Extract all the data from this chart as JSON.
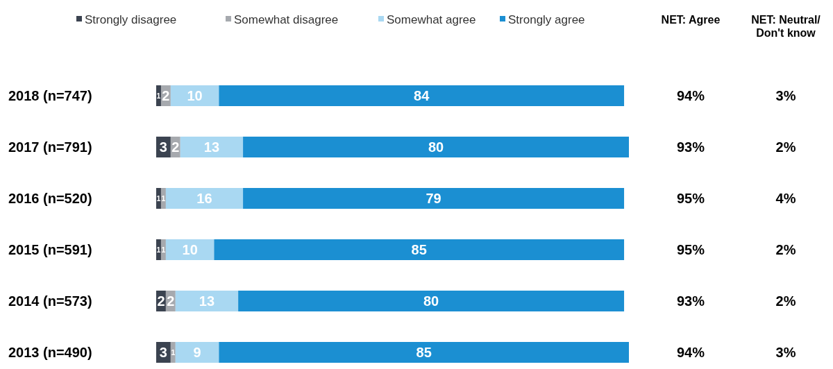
{
  "chart_data": {
    "type": "bar",
    "orientation": "horizontal",
    "stacked": true,
    "data_labels": true,
    "legend": "top",
    "tick_labels": "y",
    "categories": [
      "2018 (n=747)",
      "2017 (n=791)",
      "2016 (n=520)",
      "2015 (n=591)",
      "2014 (n=573)",
      "2013 (n=490)"
    ],
    "series": [
      {
        "name": "Strongly disagree",
        "color": "#3b4350",
        "values": [
          1,
          3,
          1,
          1,
          2,
          3
        ]
      },
      {
        "name": "Somewhat disagree",
        "color": "#a6a9ae",
        "values": [
          2,
          2,
          1,
          1,
          2,
          1
        ]
      },
      {
        "name": "Somewhat agree",
        "color": "#a9d8f2",
        "values": [
          10,
          13,
          16,
          10,
          13,
          9
        ]
      },
      {
        "name": "Strongly agree",
        "color": "#1b8fd2",
        "values": [
          84,
          80,
          79,
          85,
          80,
          85
        ]
      }
    ],
    "annotations": [
      "NET: Agree",
      "NET: Neutral/ Don't know",
      "94%",
      "3%",
      "93%",
      "2%",
      "95%",
      "4%",
      "95%",
      "2%",
      "93%",
      "2%",
      "94%",
      "3%"
    ]
  }
}
